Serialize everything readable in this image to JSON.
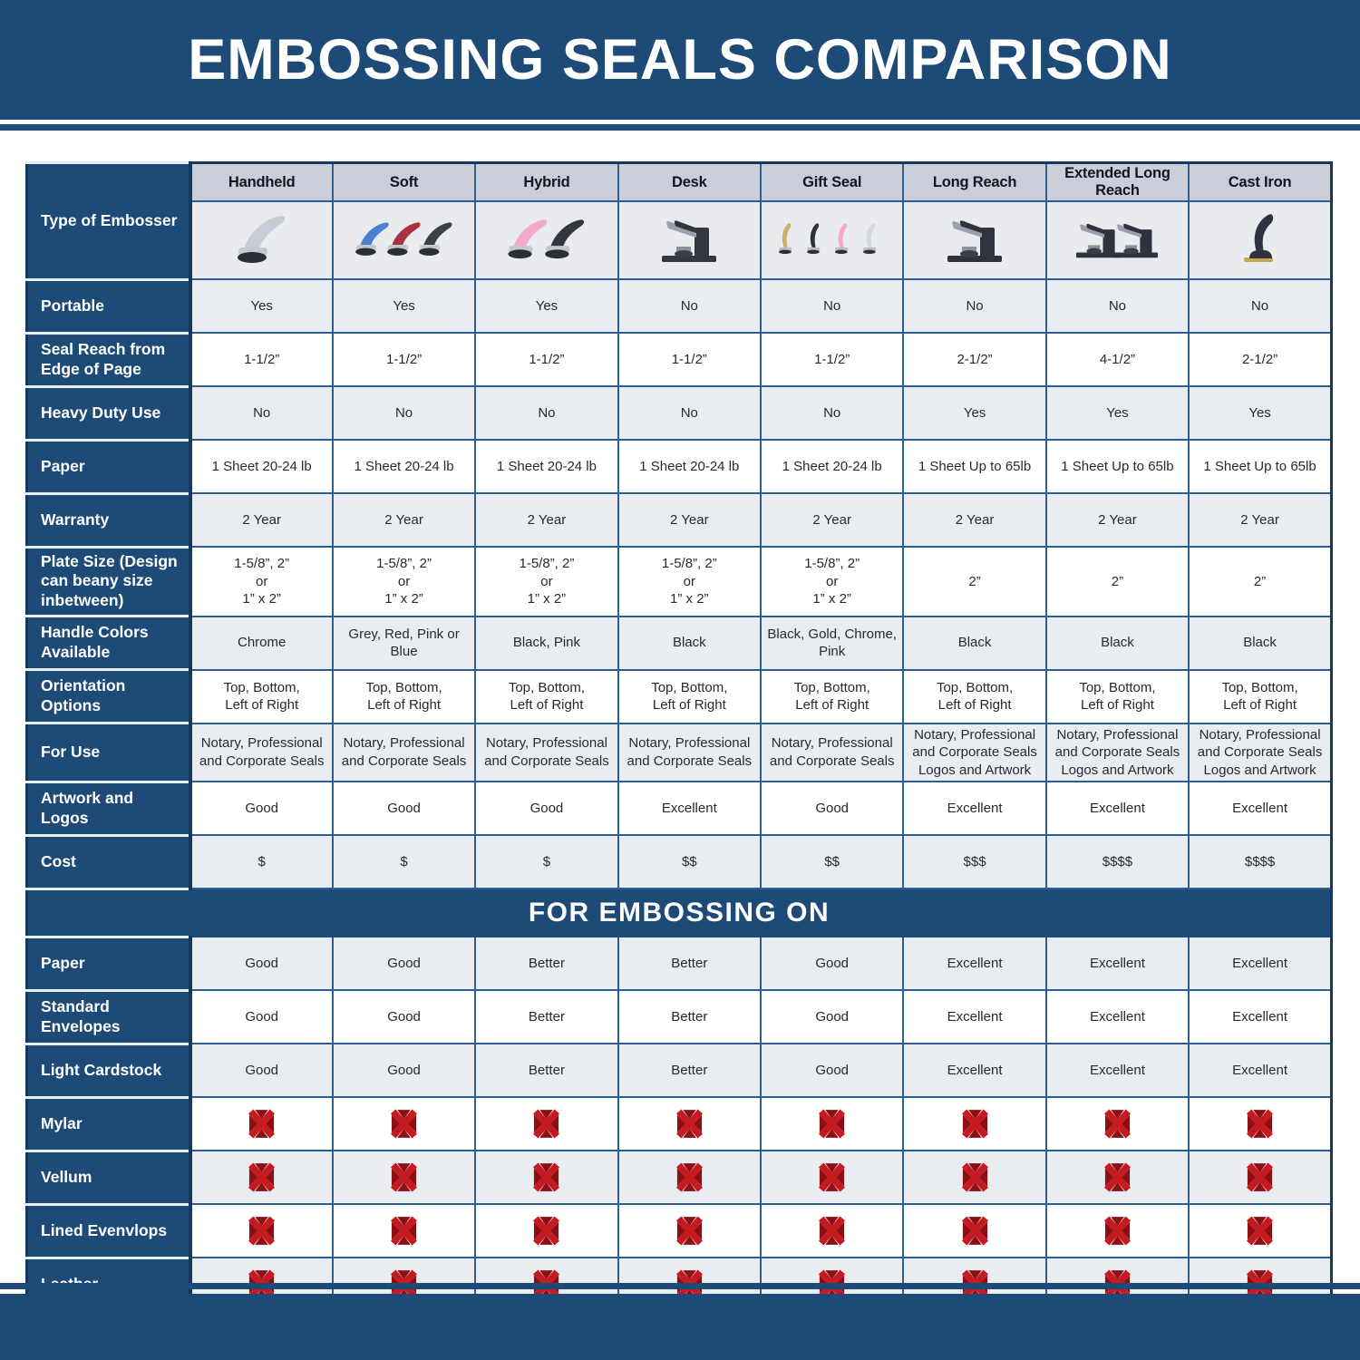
{
  "title": "EMBOSSING SEALS COMPARISON",
  "section_title": "FOR EMBOSSING ON",
  "type_row_label": "Type of Embosser",
  "colors": {
    "navy": "#1d4a76",
    "navy_dark": "#123a61",
    "grid_blue": "#2d5f93",
    "header_bg": "#c9ced8",
    "row_shade": "#e9edf2",
    "row_plain": "#ffffff",
    "x_bright_red": "#c41a20",
    "x_dark_red": "#8a1016"
  },
  "columns": [
    {
      "key": "handheld",
      "label": "Handheld",
      "image": {
        "glyph": "clamp",
        "colors": [
          "#c6cdd8"
        ]
      }
    },
    {
      "key": "soft",
      "label": "Soft",
      "image": {
        "glyph": "clamp",
        "colors": [
          "#4d7fd0",
          "#a8323e",
          "#3b4049"
        ]
      }
    },
    {
      "key": "hybrid",
      "label": "Hybrid",
      "image": {
        "glyph": "clamp",
        "colors": [
          "#f4a8cc",
          "#33373f"
        ]
      }
    },
    {
      "key": "desk",
      "label": "Desk",
      "image": {
        "glyph": "press",
        "colors": [
          "#33373f"
        ]
      }
    },
    {
      "key": "gift-seal",
      "label": "Gift Seal",
      "image": {
        "glyph": "slim",
        "colors": [
          "#c9b168",
          "#2e323b",
          "#f2a9cb",
          "#d3d9e2"
        ]
      }
    },
    {
      "key": "long-reach",
      "label": "Long Reach",
      "image": {
        "glyph": "press",
        "colors": [
          "#2f333d"
        ]
      }
    },
    {
      "key": "extended-long-reach",
      "label": "Extended Long Reach",
      "image": {
        "glyph": "press",
        "colors": [
          "#2f333d",
          "#2f333d"
        ]
      }
    },
    {
      "key": "cast-iron",
      "label": "Cast Iron",
      "image": {
        "glyph": "upright",
        "colors": [
          "#2f333d"
        ]
      }
    }
  ],
  "spec_rows": [
    {
      "label": "Portable",
      "values": [
        "Yes",
        "Yes",
        "Yes",
        "No",
        "No",
        "No",
        "No",
        "No"
      ]
    },
    {
      "label": "Seal Reach from Edge of Page",
      "values": [
        "1-1/2”",
        "1-1/2”",
        "1-1/2”",
        "1-1/2”",
        "1-1/2”",
        "2-1/2”",
        "4-1/2”",
        "2-1/2”"
      ]
    },
    {
      "label": "Heavy Duty Use",
      "values": [
        "No",
        "No",
        "No",
        "No",
        "No",
        "Yes",
        "Yes",
        "Yes"
      ]
    },
    {
      "label": "Paper",
      "values": [
        "1 Sheet 20-24 lb",
        "1 Sheet 20-24 lb",
        "1 Sheet 20-24 lb",
        "1 Sheet 20-24 lb",
        "1 Sheet 20-24 lb",
        "1 Sheet Up to 65lb",
        "1 Sheet Up to 65lb",
        "1 Sheet Up to 65lb"
      ]
    },
    {
      "label": "Warranty",
      "values": [
        "2 Year",
        "2 Year",
        "2 Year",
        "2 Year",
        "2 Year",
        "2 Year",
        "2 Year",
        "2 Year"
      ]
    },
    {
      "label": "Plate Size (Design can beany size inbetween)",
      "values": [
        "1-5/8”, 2”\nor\n1” x 2”",
        "1-5/8”, 2”\nor\n1” x 2”",
        "1-5/8”, 2”\nor\n1” x 2”",
        "1-5/8”, 2”\nor\n1” x 2”",
        "1-5/8”, 2”\nor\n1” x 2”",
        "2”",
        "2”",
        "2”"
      ]
    },
    {
      "label": "Handle Colors Available",
      "values": [
        "Chrome",
        "Grey, Red, Pink or Blue",
        "Black, Pink",
        "Black",
        "Black, Gold, Chrome, Pink",
        "Black",
        "Black",
        "Black"
      ]
    },
    {
      "label": "Orientation Options",
      "values": [
        "Top, Bottom,\nLeft of Right",
        "Top, Bottom,\nLeft of Right",
        "Top, Bottom,\nLeft of Right",
        "Top, Bottom,\nLeft of Right",
        "Top, Bottom,\nLeft of Right",
        "Top, Bottom,\nLeft of Right",
        "Top, Bottom,\nLeft of Right",
        "Top, Bottom,\nLeft of Right"
      ]
    },
    {
      "label": "For Use",
      "values": [
        "Notary, Professional\nand Corporate Seals",
        "Notary, Professional\nand Corporate Seals",
        "Notary, Professional\nand Corporate Seals",
        "Notary, Professional\nand Corporate Seals",
        "Notary, Professional\nand Corporate Seals",
        "Notary, Professional\nand Corporate Seals\nLogos and Artwork",
        "Notary, Professional\nand Corporate Seals\nLogos and Artwork",
        "Notary, Professional\nand Corporate Seals\nLogos and Artwork"
      ]
    },
    {
      "label": "Artwork and Logos",
      "values": [
        "Good",
        "Good",
        "Good",
        "Excellent",
        "Good",
        "Excellent",
        "Excellent",
        "Excellent"
      ]
    },
    {
      "label": "Cost",
      "values": [
        "$",
        "$",
        "$",
        "$$",
        "$$",
        "$$$",
        "$$$$",
        "$$$$"
      ]
    }
  ],
  "embossing_rows": [
    {
      "label": "Paper",
      "values": [
        "Good",
        "Good",
        "Better",
        "Better",
        "Good",
        "Excellent",
        "Excellent",
        "Excellent"
      ]
    },
    {
      "label": "Standard Envelopes",
      "values": [
        "Good",
        "Good",
        "Better",
        "Better",
        "Good",
        "Excellent",
        "Excellent",
        "Excellent"
      ]
    },
    {
      "label": "Light Cardstock",
      "values": [
        "Good",
        "Good",
        "Better",
        "Better",
        "Good",
        "Excellent",
        "Excellent",
        "Excellent"
      ]
    },
    {
      "label": "Mylar",
      "icon": "red-x",
      "values": [
        "X",
        "X",
        "X",
        "X",
        "X",
        "X",
        "X",
        "X"
      ]
    },
    {
      "label": "Vellum",
      "icon": "red-x",
      "values": [
        "X",
        "X",
        "X",
        "X",
        "X",
        "X",
        "X",
        "X"
      ]
    },
    {
      "label": "Lined Evenvlops",
      "icon": "red-x",
      "values": [
        "X",
        "X",
        "X",
        "X",
        "X",
        "X",
        "X",
        "X"
      ]
    },
    {
      "label": "Leather",
      "icon": "red-x",
      "values": [
        "X",
        "X",
        "X",
        "X",
        "X",
        "X",
        "X",
        "X"
      ]
    }
  ],
  "chart_data": {
    "type": "table",
    "title": "EMBOSSING SEALS COMPARISON",
    "section2": "FOR EMBOSSING ON",
    "columns": [
      "Handheld",
      "Soft",
      "Hybrid",
      "Desk",
      "Gift Seal",
      "Long Reach",
      "Extended Long Reach",
      "Cast Iron"
    ],
    "rows": [
      {
        "label": "Portable",
        "values": [
          "Yes",
          "Yes",
          "Yes",
          "No",
          "No",
          "No",
          "No",
          "No"
        ]
      },
      {
        "label": "Seal Reach from Edge of Page",
        "values": [
          "1-1/2”",
          "1-1/2”",
          "1-1/2”",
          "1-1/2”",
          "1-1/2”",
          "2-1/2”",
          "4-1/2”",
          "2-1/2”"
        ]
      },
      {
        "label": "Heavy Duty Use",
        "values": [
          "No",
          "No",
          "No",
          "No",
          "No",
          "Yes",
          "Yes",
          "Yes"
        ]
      },
      {
        "label": "Paper",
        "values": [
          "1 Sheet 20-24 lb",
          "1 Sheet 20-24 lb",
          "1 Sheet 20-24 lb",
          "1 Sheet 20-24 lb",
          "1 Sheet 20-24 lb",
          "1 Sheet Up to 65lb",
          "1 Sheet Up to 65lb",
          "1 Sheet Up to 65lb"
        ]
      },
      {
        "label": "Warranty",
        "values": [
          "2 Year",
          "2 Year",
          "2 Year",
          "2 Year",
          "2 Year",
          "2 Year",
          "2 Year",
          "2 Year"
        ]
      },
      {
        "label": "Plate Size (Design can beany size inbetween)",
        "values": [
          "1-5/8”, 2” or 1” x 2”",
          "1-5/8”, 2” or 1” x 2”",
          "1-5/8”, 2” or 1” x 2”",
          "1-5/8”, 2” or 1” x 2”",
          "1-5/8”, 2” or 1” x 2”",
          "2”",
          "2”",
          "2”"
        ]
      },
      {
        "label": "Handle Colors Available",
        "values": [
          "Chrome",
          "Grey, Red, Pink or Blue",
          "Black, Pink",
          "Black",
          "Black, Gold, Chrome, Pink",
          "Black",
          "Black",
          "Black"
        ]
      },
      {
        "label": "Orientation Options",
        "values": [
          "Top, Bottom, Left of Right",
          "Top, Bottom, Left of Right",
          "Top, Bottom, Left of Right",
          "Top, Bottom, Left of Right",
          "Top, Bottom, Left of Right",
          "Top, Bottom, Left of Right",
          "Top, Bottom, Left of Right",
          "Top, Bottom, Left of Right"
        ]
      },
      {
        "label": "For Use",
        "values": [
          "Notary, Professional and Corporate Seals",
          "Notary, Professional and Corporate Seals",
          "Notary, Professional and Corporate Seals",
          "Notary, Professional and Corporate Seals",
          "Notary, Professional and Corporate Seals",
          "Notary, Professional and Corporate Seals Logos and Artwork",
          "Notary, Professional and Corporate Seals Logos and Artwork",
          "Notary, Professional and Corporate Seals Logos and Artwork"
        ]
      },
      {
        "label": "Artwork and Logos",
        "values": [
          "Good",
          "Good",
          "Good",
          "Excellent",
          "Good",
          "Excellent",
          "Excellent",
          "Excellent"
        ]
      },
      {
        "label": "Cost",
        "values": [
          "$",
          "$",
          "$",
          "$$",
          "$$",
          "$$$",
          "$$$$",
          "$$$$"
        ]
      },
      {
        "label": "Paper (embossing on)",
        "values": [
          "Good",
          "Good",
          "Better",
          "Better",
          "Good",
          "Excellent",
          "Excellent",
          "Excellent"
        ]
      },
      {
        "label": "Standard Envelopes (embossing on)",
        "values": [
          "Good",
          "Good",
          "Better",
          "Better",
          "Good",
          "Excellent",
          "Excellent",
          "Excellent"
        ]
      },
      {
        "label": "Light Cardstock (embossing on)",
        "values": [
          "Good",
          "Good",
          "Better",
          "Better",
          "Good",
          "Excellent",
          "Excellent",
          "Excellent"
        ]
      },
      {
        "label": "Mylar (embossing on)",
        "values": [
          "not suitable",
          "not suitable",
          "not suitable",
          "not suitable",
          "not suitable",
          "not suitable",
          "not suitable",
          "not suitable"
        ]
      },
      {
        "label": "Vellum (embossing on)",
        "values": [
          "not suitable",
          "not suitable",
          "not suitable",
          "not suitable",
          "not suitable",
          "not suitable",
          "not suitable",
          "not suitable"
        ]
      },
      {
        "label": "Lined Evenvlops (embossing on)",
        "values": [
          "not suitable",
          "not suitable",
          "not suitable",
          "not suitable",
          "not suitable",
          "not suitable",
          "not suitable",
          "not suitable"
        ]
      },
      {
        "label": "Leather (embossing on)",
        "values": [
          "not suitable",
          "not suitable",
          "not suitable",
          "not suitable",
          "not suitable",
          "not suitable",
          "not suitable",
          "not suitable"
        ]
      }
    ]
  }
}
